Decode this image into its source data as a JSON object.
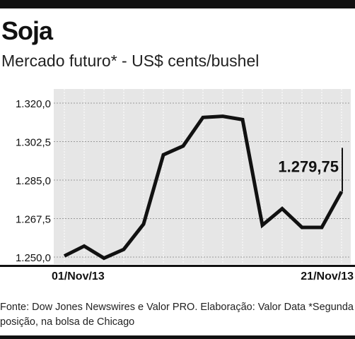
{
  "header": {
    "title": "Soja",
    "subtitle": "Mercado futuro* - US$ cents/bushel"
  },
  "chart_data": {
    "type": "line",
    "title": "Soja",
    "subtitle": "Mercado futuro* - US$ cents/bushel",
    "xlabel": "",
    "ylabel": "",
    "x_tick_labels": [
      "01/Nov/13",
      "21/Nov/13"
    ],
    "y_ticks": [
      1250.0,
      1267.5,
      1285.0,
      1302.5,
      1320.0
    ],
    "y_tick_labels": [
      "1.250,0",
      "1.267,5",
      "1.285,0",
      "1.302,5",
      "1.320,0"
    ],
    "ylim": [
      1250.0,
      1320.0
    ],
    "grid": true,
    "series": [
      {
        "name": "",
        "values": [
          1250.5,
          1255.0,
          1249.5,
          1253.5,
          1265.0,
          1296.5,
          1300.5,
          1313.5,
          1314.0,
          1312.5,
          1264.5,
          1272.0,
          1263.5,
          1263.5,
          1279.75
        ]
      }
    ],
    "annotation": {
      "label": "1.279,75",
      "value": 1279.75
    },
    "colors": {
      "line": "#111111",
      "grid": "#9a9a9a",
      "plot_background": "#e6e6e6",
      "bars": "#111111"
    }
  },
  "footer": {
    "source": "Fonte: Dow Jones Newswires e Valor PRO. Elaboração: Valor Data  *Segunda posição, na bolsa de Chicago"
  }
}
